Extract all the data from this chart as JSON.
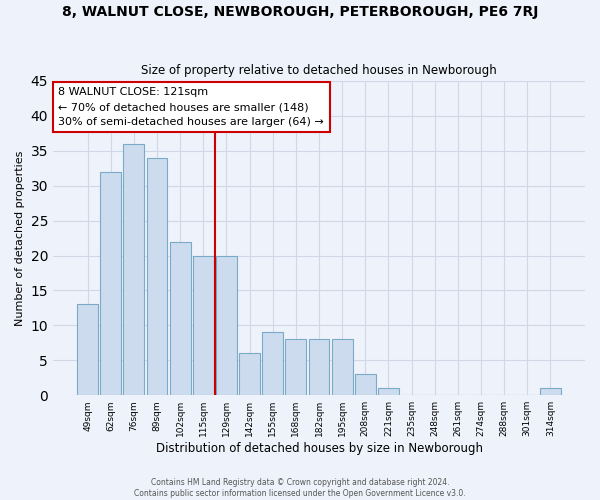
{
  "title": "8, WALNUT CLOSE, NEWBOROUGH, PETERBOROUGH, PE6 7RJ",
  "subtitle": "Size of property relative to detached houses in Newborough",
  "xlabel": "Distribution of detached houses by size in Newborough",
  "ylabel": "Number of detached properties",
  "bar_labels": [
    "49sqm",
    "62sqm",
    "76sqm",
    "89sqm",
    "102sqm",
    "115sqm",
    "129sqm",
    "142sqm",
    "155sqm",
    "168sqm",
    "182sqm",
    "195sqm",
    "208sqm",
    "221sqm",
    "235sqm",
    "248sqm",
    "261sqm",
    "274sqm",
    "288sqm",
    "301sqm",
    "314sqm"
  ],
  "bar_values": [
    13,
    32,
    36,
    34,
    22,
    20,
    20,
    6,
    9,
    8,
    8,
    8,
    3,
    1,
    0,
    0,
    0,
    0,
    0,
    0,
    1
  ],
  "bar_color": "#ccdcee",
  "bar_edge_color": "#7aaac8",
  "grid_color": "#d0d8e8",
  "ylim": [
    0,
    45
  ],
  "yticks": [
    0,
    5,
    10,
    15,
    20,
    25,
    30,
    35,
    40,
    45
  ],
  "property_line_x": 5.5,
  "property_line_color": "#cc0000",
  "annotation_line1": "8 WALNUT CLOSE: 121sqm",
  "annotation_line2": "← 70% of detached houses are smaller (148)",
  "annotation_line3": "30% of semi-detached houses are larger (64) →",
  "annotation_box_color": "#ffffff",
  "annotation_box_edge_color": "#cc0000",
  "footer_line1": "Contains HM Land Registry data © Crown copyright and database right 2024.",
  "footer_line2": "Contains public sector information licensed under the Open Government Licence v3.0.",
  "background_color": "#eef2fa",
  "plot_bg_color": "#eef2fa"
}
